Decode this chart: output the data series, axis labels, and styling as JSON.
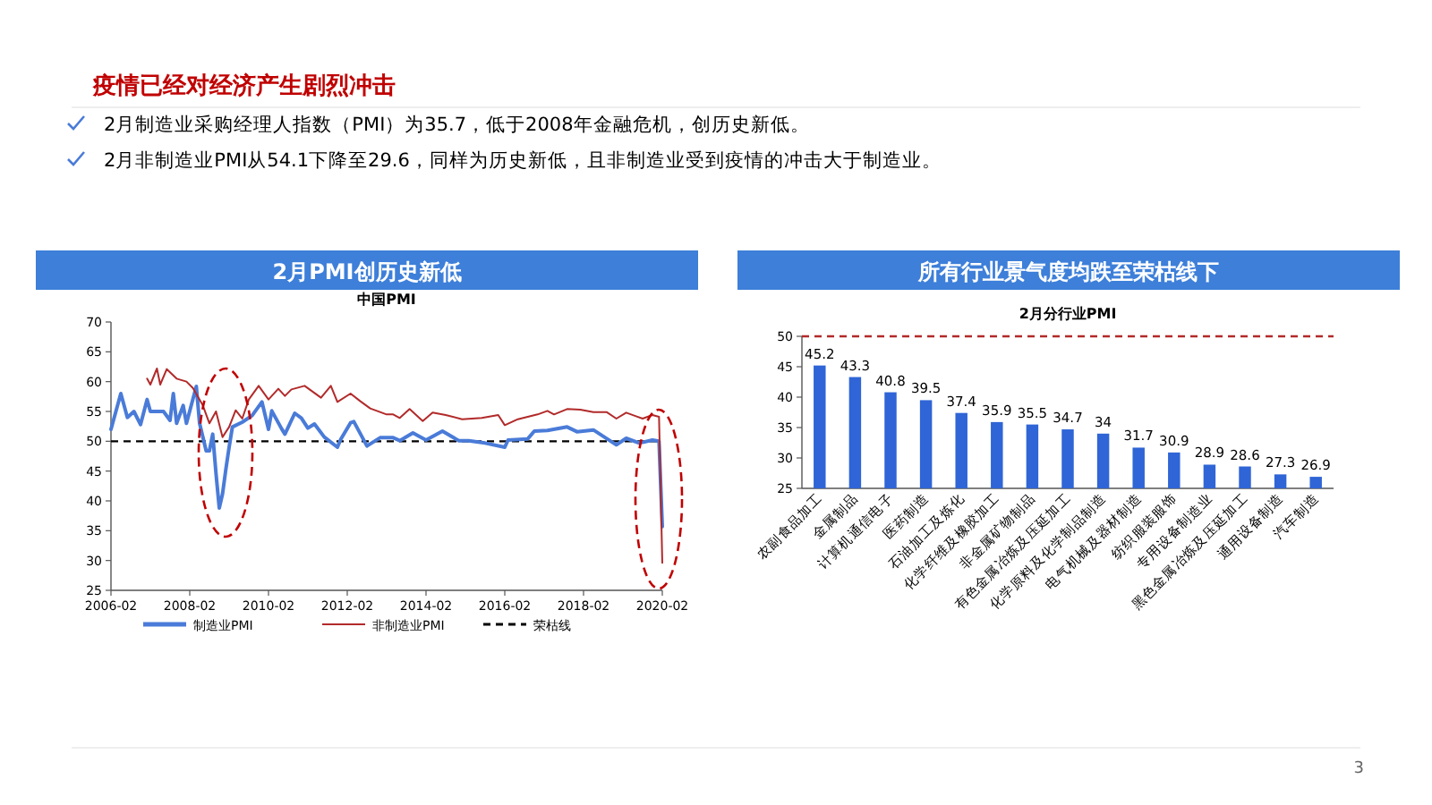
{
  "chart_data": [
    {
      "type": "other",
      "title": "疫情已经对经济产生剧烈冲击",
      "annotations": [
        "2月制造业采购经理人指数（PMI）为35.7，低于2008年金融危机，创历史新低。",
        "2月非制造业PMI从54.1下降至29.6，同样为历史新低，且非制造业受到疫情的冲击大于制造业。",
        "3"
      ]
    },
    {
      "type": "line",
      "title": "2月PMI创历史新低",
      "subtitle": "中国PMI",
      "xlim": [
        "2006-02",
        "2020-02"
      ],
      "xticks": [
        {
          "value": "2006-02",
          "label": "2006-02"
        },
        {
          "value": "2008-02",
          "label": "2008-02"
        },
        {
          "value": "2010-02",
          "label": "2010-02"
        },
        {
          "value": "2012-02",
          "label": "2012-02"
        },
        {
          "value": "2014-02",
          "label": "2014-02"
        },
        {
          "value": "2016-02",
          "label": "2016-02"
        },
        {
          "value": "2018-02",
          "label": "2018-02"
        },
        {
          "value": "2020-02",
          "label": "2020-02"
        }
      ],
      "ylim": [
        25,
        70
      ],
      "yticks": [
        25,
        30,
        35,
        40,
        45,
        50,
        55,
        60,
        65,
        70
      ],
      "grid": false,
      "legend": "bottom",
      "marker": "none",
      "series": [
        {
          "name": "制造业PMI",
          "color": "#4a7bd8",
          "x": [
            "2006-02",
            "2006-04",
            "2006-05",
            "2006-07",
            "2006-09",
            "2006-11",
            "2007-01",
            "2007-02",
            "2007-06",
            "2007-08",
            "2007-09",
            "2007-10",
            "2007-12",
            "2008-01",
            "2008-04",
            "2008-05",
            "2008-07",
            "2008-08",
            "2008-09",
            "2008-10",
            "2008-11",
            "2008-12",
            "2009-01",
            "2009-02",
            "2009-03",
            "2009-06",
            "2009-09",
            "2009-12",
            "2010-02",
            "2010-03",
            "2010-06",
            "2010-07",
            "2010-10",
            "2010-12",
            "2011-02",
            "2011-04",
            "2011-07",
            "2011-11",
            "2011-12",
            "2012-03",
            "2012-04",
            "2012-08",
            "2012-12",
            "2013-04",
            "2013-06",
            "2013-10",
            "2014-02",
            "2014-07",
            "2014-12",
            "2015-03",
            "2015-08",
            "2016-02",
            "2016-03",
            "2016-09",
            "2016-11",
            "2017-03",
            "2017-09",
            "2017-12",
            "2018-05",
            "2018-12",
            "2019-03",
            "2019-07",
            "2019-11",
            "2020-01",
            "2020-02"
          ],
          "values": [
            52,
            56,
            58,
            54,
            55,
            52.8,
            57,
            55,
            55,
            53.5,
            58,
            53,
            56,
            53,
            59.2,
            53,
            48.4,
            48.4,
            51.2,
            44.6,
            38.8,
            41.2,
            45.3,
            49,
            52.4,
            53.2,
            54.3,
            56.6,
            52,
            55.1,
            52.1,
            51.2,
            54.7,
            53.9,
            52.2,
            52.9,
            50.7,
            49,
            50.3,
            53.1,
            53.3,
            49.2,
            50.6,
            50.6,
            50.1,
            51.4,
            50.2,
            51.7,
            50.1,
            50.1,
            49.7,
            49,
            50.2,
            50.4,
            51.7,
            51.8,
            52.4,
            51.6,
            51.9,
            49.4,
            50.5,
            49.7,
            50.2,
            50,
            35.7
          ]
        },
        {
          "name": "非制造业PMI",
          "color": "#b22a2a",
          "x": [
            "2007-01",
            "2007-02",
            "2007-04",
            "2007-05",
            "2007-07",
            "2007-10",
            "2008-01",
            "2008-03",
            "2008-06",
            "2008-08",
            "2008-10",
            "2008-12",
            "2009-02",
            "2009-04",
            "2009-06",
            "2009-08",
            "2009-11",
            "2010-02",
            "2010-05",
            "2010-07",
            "2010-09",
            "2011-01",
            "2011-06",
            "2011-09",
            "2011-11",
            "2012-03",
            "2012-06",
            "2012-09",
            "2013-02",
            "2013-04",
            "2013-06",
            "2013-09",
            "2014-01",
            "2014-04",
            "2014-08",
            "2015-01",
            "2015-07",
            "2015-12",
            "2016-02",
            "2016-06",
            "2016-12",
            "2017-03",
            "2017-05",
            "2017-09",
            "2018-01",
            "2018-05",
            "2018-09",
            "2018-12",
            "2019-03",
            "2019-06",
            "2019-08",
            "2019-11",
            "2020-01",
            "2020-02"
          ],
          "values": [
            60.5,
            59.5,
            62.2,
            59.5,
            62.1,
            60.5,
            60,
            58.9,
            56,
            53,
            55,
            50.7,
            52.4,
            55.2,
            53.8,
            57,
            59.3,
            57,
            58.8,
            57.6,
            58.7,
            59.3,
            57.3,
            59.3,
            56.6,
            58,
            56.7,
            55.5,
            54.5,
            54.5,
            53.9,
            55.4,
            53.4,
            54.8,
            54.4,
            53.7,
            53.9,
            54.4,
            52.7,
            53.7,
            54.5,
            55.1,
            54.5,
            55.4,
            55.3,
            54.9,
            54.9,
            53.8,
            54.8,
            54.2,
            53.8,
            54.4,
            54.1,
            29.6
          ]
        }
      ],
      "ref_lines": [
        {
          "axis": "y",
          "value": 50,
          "label": "荣枯线",
          "color": "#000000",
          "line_style": "dashed"
        }
      ]
    },
    {
      "type": "bar",
      "title": "所有行业景气度均跌至荣枯线下",
      "subtitle": "2月分行业PMI",
      "categories": [
        "农副食品加工",
        "金属制品",
        "计算机通信电子",
        "医药制造",
        "石油加工及炼化",
        "化学纤维及橡胶加工",
        "非金属矿物制品",
        "有色金属冶炼及压延加工",
        "化学原料及化学制品制造",
        "电气机械及器材制造",
        "纺织服装服饰",
        "专用设备制造业",
        "黑色金属冶炼及压延加工",
        "通用设备制造",
        "汽车制造"
      ],
      "values": [
        45.2,
        43.3,
        40.8,
        39.5,
        37.4,
        35.9,
        35.5,
        34.7,
        34,
        31.7,
        30.9,
        28.9,
        28.6,
        27.3,
        26.9
      ],
      "color": "#2f65d6",
      "data_labels": true,
      "ylim": [
        25,
        50
      ],
      "yticks": [
        25,
        30,
        35,
        40,
        45,
        50
      ],
      "grid": false,
      "ref_lines": [
        {
          "axis": "y",
          "value": 50,
          "color": "#b22a2a",
          "line_style": "dashed"
        }
      ]
    }
  ]
}
